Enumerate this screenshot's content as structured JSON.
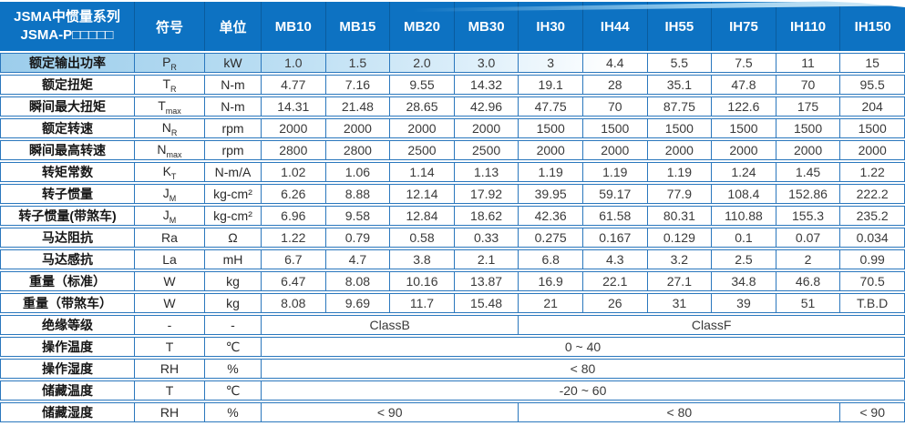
{
  "table": {
    "header": {
      "title_line1": "JSMA中惯量系列",
      "title_line2": "JSMA-P□□□□□",
      "symbol_label": "符号",
      "unit_label": "单位",
      "models": [
        "MB10",
        "MB15",
        "MB20",
        "MB30",
        "IH30",
        "IH44",
        "IH55",
        "IH75",
        "IH110",
        "IH150"
      ]
    },
    "rows": [
      {
        "label": "额定输出功率",
        "symbol": "P",
        "sub": "R",
        "unit": "kW",
        "values": [
          "1.0",
          "1.5",
          "2.0",
          "3.0",
          "3",
          "4.4",
          "5.5",
          "7.5",
          "11",
          "15"
        ]
      },
      {
        "label": "额定扭矩",
        "symbol": "T",
        "sub": "R",
        "unit": "N-m",
        "values": [
          "4.77",
          "7.16",
          "9.55",
          "14.32",
          "19.1",
          "28",
          "35.1",
          "47.8",
          "70",
          "95.5"
        ]
      },
      {
        "label": "瞬间最大扭矩",
        "symbol": "T",
        "sub": "max",
        "unit": "N-m",
        "values": [
          "14.31",
          "21.48",
          "28.65",
          "42.96",
          "47.75",
          "70",
          "87.75",
          "122.6",
          "175",
          "204"
        ]
      },
      {
        "label": "额定转速",
        "symbol": "N",
        "sub": "R",
        "unit": "rpm",
        "values": [
          "2000",
          "2000",
          "2000",
          "2000",
          "1500",
          "1500",
          "1500",
          "1500",
          "1500",
          "1500"
        ]
      },
      {
        "label": "瞬间最高转速",
        "symbol": "N",
        "sub": "max",
        "unit": "rpm",
        "values": [
          "2800",
          "2800",
          "2500",
          "2500",
          "2000",
          "2000",
          "2000",
          "2000",
          "2000",
          "2000"
        ]
      },
      {
        "label": "转矩常数",
        "symbol": "K",
        "sub": "T",
        "unit": "N-m/A",
        "values": [
          "1.02",
          "1.06",
          "1.14",
          "1.13",
          "1.19",
          "1.19",
          "1.19",
          "1.24",
          "1.45",
          "1.22"
        ]
      },
      {
        "label": "转子惯量",
        "symbol": "J",
        "sub": "M",
        "unit": "kg-cm²",
        "values": [
          "6.26",
          "8.88",
          "12.14",
          "17.92",
          "39.95",
          "59.17",
          "77.9",
          "108.4",
          "152.86",
          "222.2"
        ]
      },
      {
        "label": "转子惯量(带煞车)",
        "symbol": "J",
        "sub": "M",
        "unit": "kg-cm²",
        "values": [
          "6.96",
          "9.58",
          "12.84",
          "18.62",
          "42.36",
          "61.58",
          "80.31",
          "110.88",
          "155.3",
          "235.2"
        ]
      },
      {
        "label": "马达阻抗",
        "symbol": "Ra",
        "sub": "",
        "unit": "Ω",
        "values": [
          "1.22",
          "0.79",
          "0.58",
          "0.33",
          "0.275",
          "0.167",
          "0.129",
          "0.1",
          "0.07",
          "0.034"
        ]
      },
      {
        "label": "马达感抗",
        "symbol": "La",
        "sub": "",
        "unit": "mH",
        "values": [
          "6.7",
          "4.7",
          "3.8",
          "2.1",
          "6.8",
          "4.3",
          "3.2",
          "2.5",
          "2",
          "0.99"
        ]
      },
      {
        "label": "重量（标准）",
        "symbol": "W",
        "sub": "",
        "unit": "kg",
        "values": [
          "6.47",
          "8.08",
          "10.16",
          "13.87",
          "16.9",
          "22.1",
          "27.1",
          "34.8",
          "46.8",
          "70.5"
        ]
      },
      {
        "label": "重量（带煞车）",
        "symbol": "W",
        "sub": "",
        "unit": "kg",
        "values": [
          "8.08",
          "9.69",
          "11.7",
          "15.48",
          "21",
          "26",
          "31",
          "39",
          "51",
          "T.B.D"
        ]
      },
      {
        "label": "绝缘等级",
        "symbol": "-",
        "sub": "",
        "unit": "-",
        "spans": [
          {
            "text": "ClassB",
            "cols": 4
          },
          {
            "text": "ClassF",
            "cols": 6
          }
        ]
      },
      {
        "label": "操作温度",
        "symbol": "T",
        "sub": "",
        "unit": "℃",
        "spans": [
          {
            "text": "0 ~ 40",
            "cols": 10
          }
        ]
      },
      {
        "label": "操作湿度",
        "symbol": "RH",
        "sub": "",
        "unit": "%",
        "spans": [
          {
            "text": "< 80",
            "cols": 10
          }
        ]
      },
      {
        "label": "储藏温度",
        "symbol": "T",
        "sub": "",
        "unit": "℃",
        "spans": [
          {
            "text": "-20 ~ 60",
            "cols": 10
          }
        ]
      },
      {
        "label": "储藏湿度",
        "symbol": "RH",
        "sub": "",
        "unit": "%",
        "spans": [
          {
            "text": "< 90",
            "cols": 4
          },
          {
            "text": "< 80",
            "cols": 5
          },
          {
            "text": "< 90",
            "cols": 1
          }
        ]
      }
    ],
    "colors": {
      "header_bg": "#0d72c2",
      "header_separator": "#0a5c9e",
      "cell_border": "#2a77bd",
      "wave_light_blue": "#9ccdeb",
      "header_text": "#ffffff",
      "value_text": "#3a3a3a"
    }
  }
}
